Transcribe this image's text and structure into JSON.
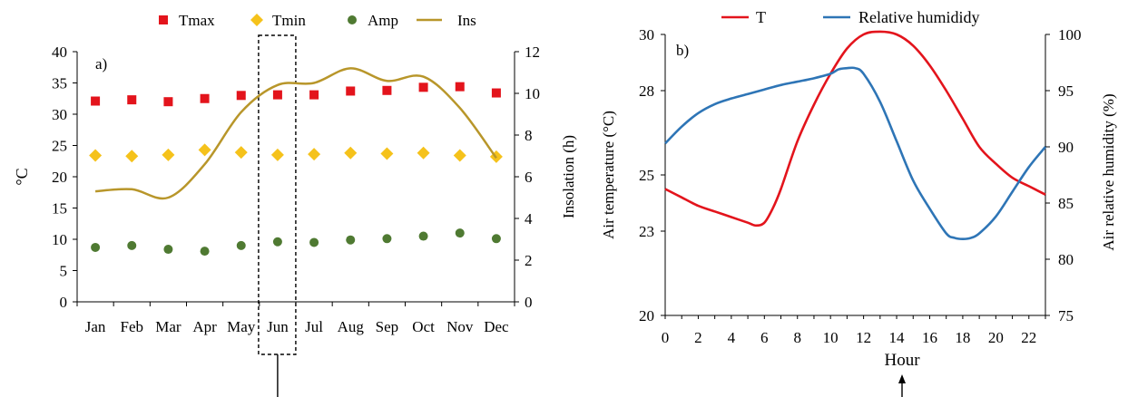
{
  "chart_data": [
    {
      "panel": "a)",
      "type": "scatter",
      "ylabel": "°C",
      "y2label": "Insolation (h)",
      "categories": [
        "Jan",
        "Feb",
        "Mar",
        "Apr",
        "May",
        "Jun",
        "Jul",
        "Aug",
        "Sep",
        "Oct",
        "Nov",
        "Dec"
      ],
      "ylim": [
        0,
        40
      ],
      "yticks": [
        0,
        5,
        10,
        15,
        20,
        25,
        30,
        35,
        40
      ],
      "y2lim": [
        0,
        12
      ],
      "y2ticks": [
        0,
        2,
        4,
        6,
        8,
        10,
        12
      ],
      "highlight_category": "Jun",
      "legend_position": "top",
      "series": [
        {
          "name": "Tmax",
          "marker": "square",
          "color": "#e3141c",
          "axis": "left",
          "values": [
            32.1,
            32.3,
            32.0,
            32.5,
            33.0,
            33.1,
            33.1,
            33.7,
            33.8,
            34.3,
            34.4,
            33.4
          ]
        },
        {
          "name": "Tmin",
          "marker": "diamond",
          "color": "#f5c21b",
          "axis": "left",
          "values": [
            23.4,
            23.3,
            23.5,
            24.3,
            23.9,
            23.5,
            23.6,
            23.8,
            23.7,
            23.8,
            23.4,
            23.2
          ]
        },
        {
          "name": "Amp",
          "marker": "circle",
          "color": "#4f7a32",
          "axis": "left",
          "values": [
            8.7,
            9.0,
            8.4,
            8.1,
            9.0,
            9.6,
            9.5,
            9.9,
            10.1,
            10.5,
            11.0,
            10.1
          ]
        },
        {
          "name": "Ins",
          "marker": "line",
          "color": "#b8962a",
          "axis": "right",
          "values": [
            5.3,
            5.4,
            5.0,
            6.6,
            9.1,
            10.4,
            10.5,
            11.2,
            10.6,
            10.8,
            9.3,
            6.9
          ]
        }
      ]
    },
    {
      "panel": "b)",
      "type": "line",
      "xlabel": "Hour",
      "ylabel": "Air temperature (°C)",
      "y2label": "Air relative humidity (%)",
      "xlim": [
        0,
        23
      ],
      "xticks": [
        0,
        2,
        4,
        6,
        8,
        10,
        12,
        14,
        16,
        18,
        20,
        22
      ],
      "ylim": [
        20,
        30
      ],
      "yticks": [
        20,
        23,
        25,
        28,
        30
      ],
      "y2lim": [
        75,
        100
      ],
      "y2ticks": [
        75,
        80,
        85,
        90,
        95,
        100
      ],
      "legend_position": "top",
      "series": [
        {
          "name": "T",
          "color": "#e3141c",
          "axis": "left",
          "x": [
            0,
            1,
            2,
            3,
            4,
            5,
            5.5,
            6,
            6.5,
            7,
            8,
            9,
            10,
            11,
            12,
            13,
            14,
            15,
            16,
            17,
            18,
            19,
            20,
            21,
            22,
            23
          ],
          "values": [
            24.5,
            24.2,
            23.9,
            23.7,
            23.5,
            23.3,
            23.2,
            23.3,
            23.8,
            24.5,
            26.2,
            27.5,
            28.6,
            29.5,
            30.0,
            30.1,
            30.0,
            29.6,
            28.9,
            28.0,
            27.0,
            26.0,
            25.4,
            24.9,
            24.6,
            24.3
          ]
        },
        {
          "name": "Relative humididy",
          "color": "#2e75b6",
          "axis": "right",
          "x": [
            0,
            1,
            2,
            3,
            4,
            5,
            6,
            7,
            8,
            9,
            10,
            10.5,
            11,
            11.5,
            12,
            13,
            14,
            15,
            16,
            17,
            17.5,
            18,
            18.5,
            19,
            20,
            21,
            22,
            23
          ],
          "values": [
            90.3,
            91.8,
            93.0,
            93.8,
            94.3,
            94.7,
            95.1,
            95.5,
            95.8,
            96.1,
            96.5,
            96.9,
            97.0,
            97.0,
            96.5,
            94.0,
            90.5,
            87.0,
            84.5,
            82.3,
            81.9,
            81.8,
            81.9,
            82.3,
            83.8,
            86.0,
            88.2,
            90.0
          ]
        }
      ]
    }
  ]
}
